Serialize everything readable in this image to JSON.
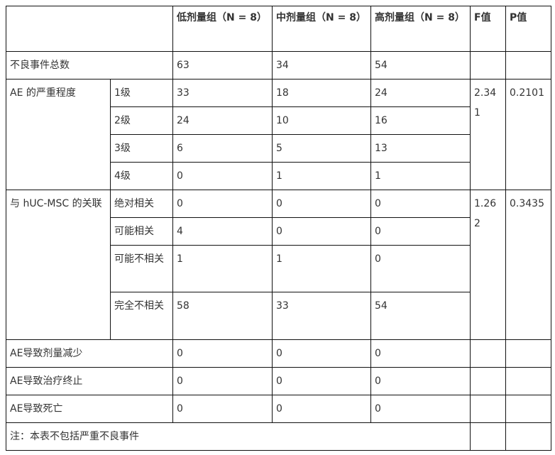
{
  "header": {
    "blank": "",
    "low": "低剂量组（N = 8）",
    "mid": "中剂量组（N = 8）",
    "high": "高剂量组（N = 8）",
    "f": "F值",
    "p": "P值"
  },
  "total": {
    "label": "不良事件总数",
    "low": "63",
    "mid": "34",
    "high": "54"
  },
  "severity": {
    "label": "AE 的严重程度",
    "f": "2.341",
    "p": "0.2101",
    "rows": [
      {
        "label": "1级",
        "low": "33",
        "mid": "18",
        "high": "24"
      },
      {
        "label": "2级",
        "low": "24",
        "mid": "10",
        "high": "16"
      },
      {
        "label": "3级",
        "low": "6",
        "mid": "5",
        "high": "13"
      },
      {
        "label": "4级",
        "low": "0",
        "mid": "1",
        "high": "1"
      }
    ]
  },
  "relation": {
    "label": "与 hUC-MSC 的关联",
    "f": "1.262",
    "p": "0.3435",
    "rows": [
      {
        "label": "绝对相关",
        "low": "0",
        "mid": "0",
        "high": "0"
      },
      {
        "label": "可能相关",
        "low": "4",
        "mid": "0",
        "high": "0"
      },
      {
        "label": "可能不相关",
        "low": "1",
        "mid": "1",
        "high": "0"
      },
      {
        "label": "完全不相关",
        "low": "58",
        "mid": "33",
        "high": "54"
      }
    ]
  },
  "other": [
    {
      "label": "AE导致剂量减少",
      "low": "0",
      "mid": "0",
      "high": "0"
    },
    {
      "label": "AE导致治疗终止",
      "low": "0",
      "mid": "0",
      "high": "0"
    },
    {
      "label": "AE导致死亡",
      "low": "0",
      "mid": "0",
      "high": "0"
    }
  ],
  "note": "注：本表不包括严重不良事件"
}
